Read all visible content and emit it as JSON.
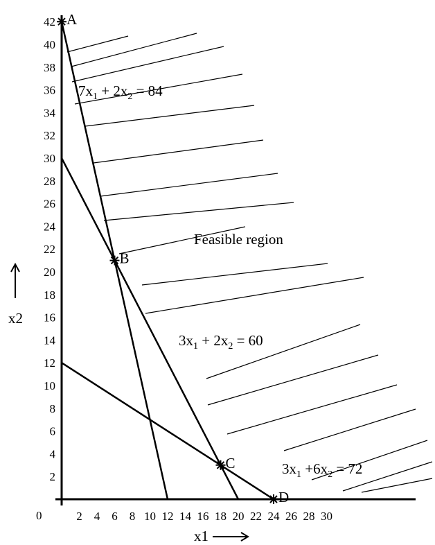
{
  "chart_data": {
    "type": "line",
    "xlabel": "x1",
    "ylabel": "x2",
    "xlim": [
      0,
      30
    ],
    "ylim": [
      0,
      42
    ],
    "x_ticks": [
      2,
      4,
      6,
      8,
      10,
      12,
      14,
      16,
      18,
      20,
      22,
      24,
      26,
      28,
      30
    ],
    "y_ticks": [
      2,
      4,
      6,
      8,
      10,
      12,
      14,
      16,
      18,
      20,
      22,
      24,
      26,
      28,
      30,
      32,
      34,
      36,
      38,
      40,
      42
    ],
    "origin_label": "0",
    "series": [
      {
        "key": "c1",
        "name": "7x1 + 2x2 = 84",
        "points": [
          [
            0,
            42
          ],
          [
            12,
            0
          ]
        ]
      },
      {
        "key": "c2",
        "name": "3x1 + 2x2 = 60",
        "points": [
          [
            0,
            30
          ],
          [
            20,
            0
          ]
        ]
      },
      {
        "key": "c3",
        "name": "3x1 +6x2 = 72",
        "points": [
          [
            0,
            12
          ],
          [
            24,
            0
          ]
        ]
      }
    ],
    "constraint_labels": {
      "c1": {
        "pre": "7x",
        "s1": "1",
        "mid": " + 2x",
        "s2": "2",
        "post": " = 84"
      },
      "c2": {
        "pre": "3x",
        "s1": "1",
        "mid": " + 2x",
        "s2": "2",
        "post": " = 60"
      },
      "c3": {
        "pre": "3x",
        "s1": "1",
        "mid": " +6x",
        "s2": "2",
        "post": " = 72"
      }
    },
    "points": [
      {
        "label": "A",
        "x": 0,
        "y": 42
      },
      {
        "label": "B",
        "x": 6,
        "y": 21
      },
      {
        "label": "C",
        "x": 18,
        "y": 3
      },
      {
        "label": "D",
        "x": 24,
        "y": 0
      }
    ],
    "annotation": "Feasible region",
    "shaded_region": "hatched area above the constraint lines"
  }
}
